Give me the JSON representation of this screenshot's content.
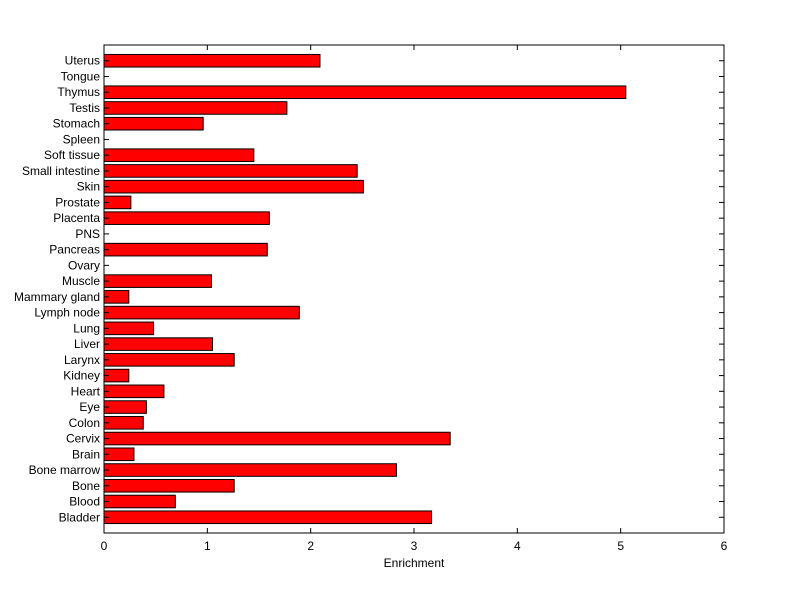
{
  "chart_data": {
    "type": "bar",
    "orientation": "horizontal",
    "categories": [
      "Bladder",
      "Blood",
      "Bone",
      "Bone marrow",
      "Brain",
      "Cervix",
      "Colon",
      "Eye",
      "Heart",
      "Kidney",
      "Larynx",
      "Liver",
      "Lung",
      "Lymph node",
      "Mammary gland",
      "Muscle",
      "Ovary",
      "Pancreas",
      "PNS",
      "Placenta",
      "Prostate",
      "Skin",
      "Small intestine",
      "Soft tissue",
      "Spleen",
      "Stomach",
      "Testis",
      "Thymus",
      "Tongue",
      "Uterus"
    ],
    "values": [
      3.17,
      0.69,
      1.26,
      2.83,
      0.29,
      3.35,
      0.38,
      0.41,
      0.58,
      0.24,
      1.26,
      1.05,
      0.48,
      1.89,
      0.24,
      1.04,
      0,
      1.58,
      0,
      1.6,
      0.26,
      2.51,
      2.45,
      1.45,
      0,
      0.96,
      1.77,
      5.05,
      0,
      2.09
    ],
    "xlabel": "Enrichment",
    "ylabel": "",
    "title": "",
    "xlim": [
      0,
      6
    ],
    "xticks": [
      0,
      1,
      2,
      3,
      4,
      5,
      6
    ],
    "bar_color": "#ff0000",
    "grid": false
  }
}
